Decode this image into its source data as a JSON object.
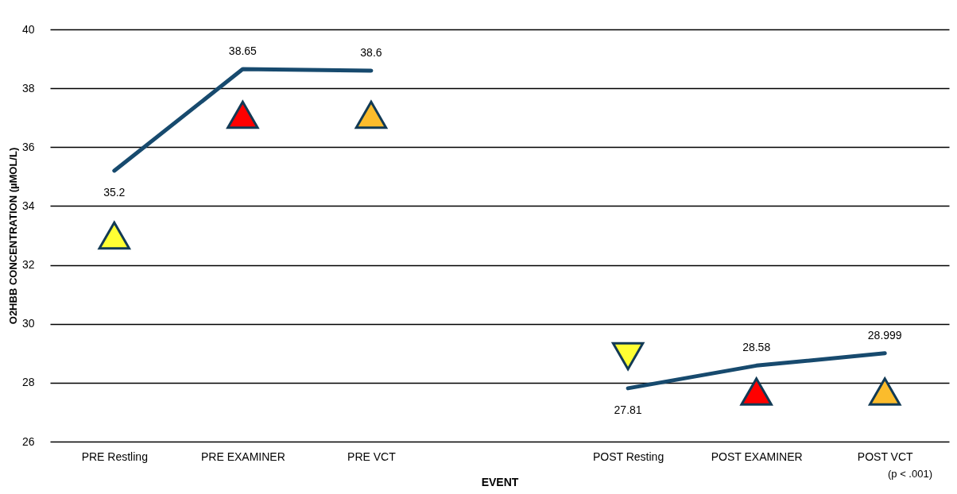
{
  "chart_data": {
    "type": "line",
    "xlabel": "EVENT",
    "ylabel": "O2HBB CONCENTRATION (µMOL/L)",
    "categories": [
      "PRE Restling",
      "PRE EXAMINER",
      "PRE VCT",
      null,
      "POST Resting",
      "POST EXAMINER",
      "POST VCT"
    ],
    "series": [
      {
        "color": "#174a6e",
        "values": [
          35.2,
          38.65,
          38.6,
          null,
          27.81,
          28.58,
          28.999
        ],
        "value_labels": [
          "35.2",
          "38.65",
          "38.6",
          null,
          "27.81",
          "28.58",
          "28.999"
        ]
      },
      {
        "type": "scatter",
        "marker": "triangle",
        "colors": [
          "#ffff33",
          "#ff0000",
          "#fbbc2c",
          null,
          null,
          "#ff0000",
          "#fbbc2c"
        ],
        "values": [
          33.0,
          37.1,
          37.1,
          null,
          null,
          27.7,
          27.7
        ]
      },
      {
        "type": "scatter",
        "marker": "triangle-down",
        "colors": [
          null,
          null,
          null,
          null,
          "#ffff33",
          null,
          null
        ],
        "values": [
          null,
          null,
          null,
          null,
          28.9,
          null,
          null
        ]
      }
    ],
    "ylim": [
      26,
      40
    ],
    "yticks": [
      26,
      28,
      30,
      32,
      34,
      36,
      38,
      40
    ],
    "grid": "y",
    "annotations": [
      "(p < .001)"
    ]
  }
}
